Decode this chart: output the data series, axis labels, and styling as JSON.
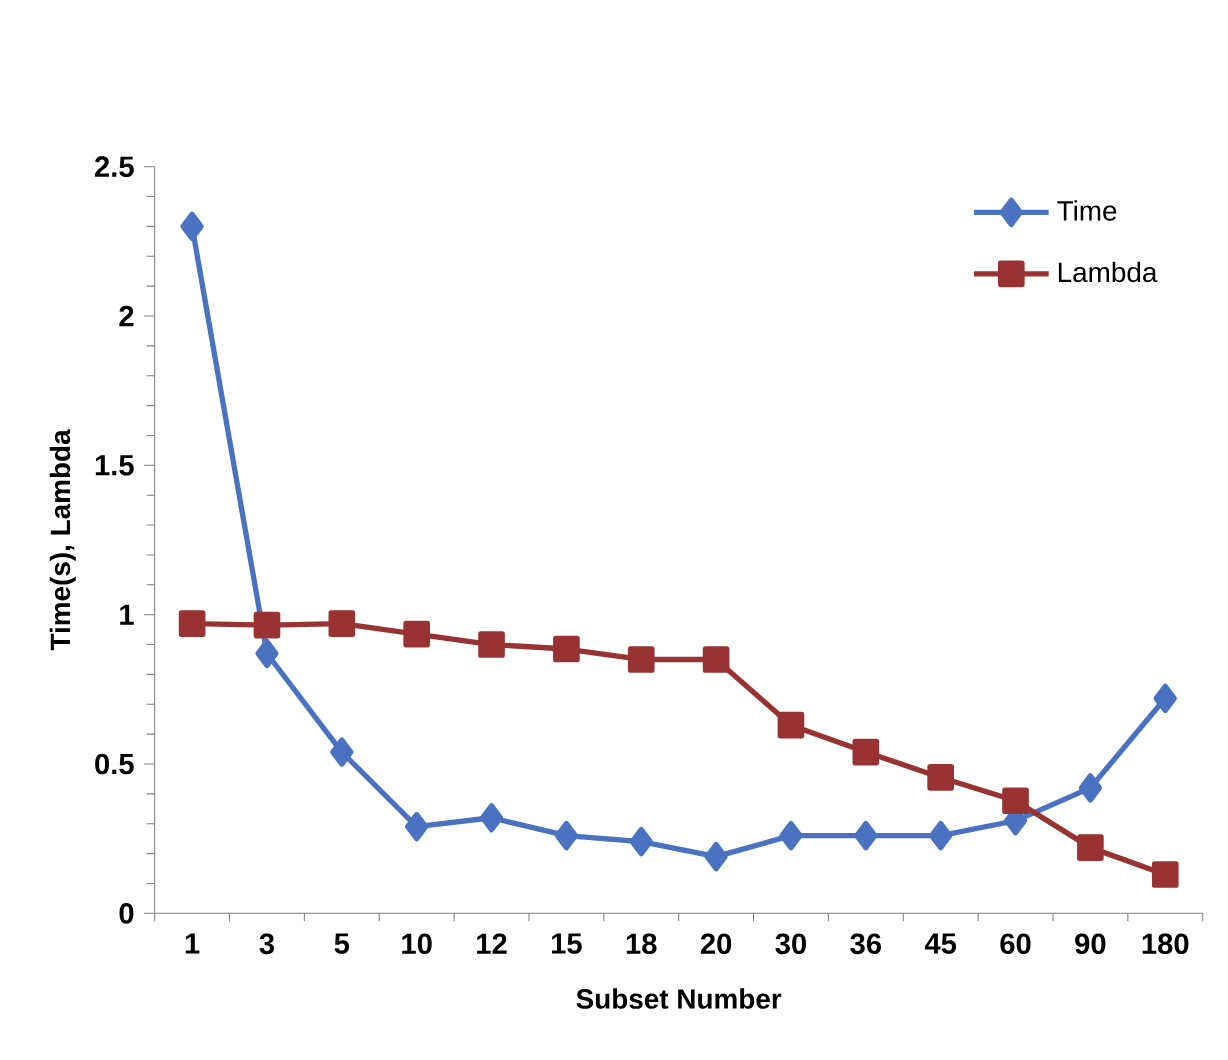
{
  "chart_data": {
    "type": "line",
    "xlabel": "Subset Number",
    "ylabel": "Time(s), Lambda",
    "categories": [
      "1",
      "3",
      "5",
      "10",
      "12",
      "15",
      "18",
      "20",
      "30",
      "36",
      "45",
      "60",
      "90",
      "180"
    ],
    "series": [
      {
        "name": "Time",
        "color": "#4a72c0",
        "marker": "diamond",
        "values": [
          2.3,
          0.87,
          0.54,
          0.29,
          0.32,
          0.26,
          0.24,
          0.19,
          0.26,
          0.26,
          0.26,
          0.31,
          0.42,
          0.72
        ]
      },
      {
        "name": "Lambda",
        "color": "#993333",
        "marker": "square",
        "values": [
          0.97,
          0.965,
          0.97,
          0.935,
          0.9,
          0.885,
          0.85,
          0.85,
          0.63,
          0.54,
          0.455,
          0.377,
          0.22,
          0.13
        ]
      }
    ],
    "ylim": [
      0,
      2.5
    ],
    "yticks": [
      0,
      0.5,
      1,
      1.5,
      2,
      2.5
    ],
    "grid": false,
    "legend": "top right"
  }
}
